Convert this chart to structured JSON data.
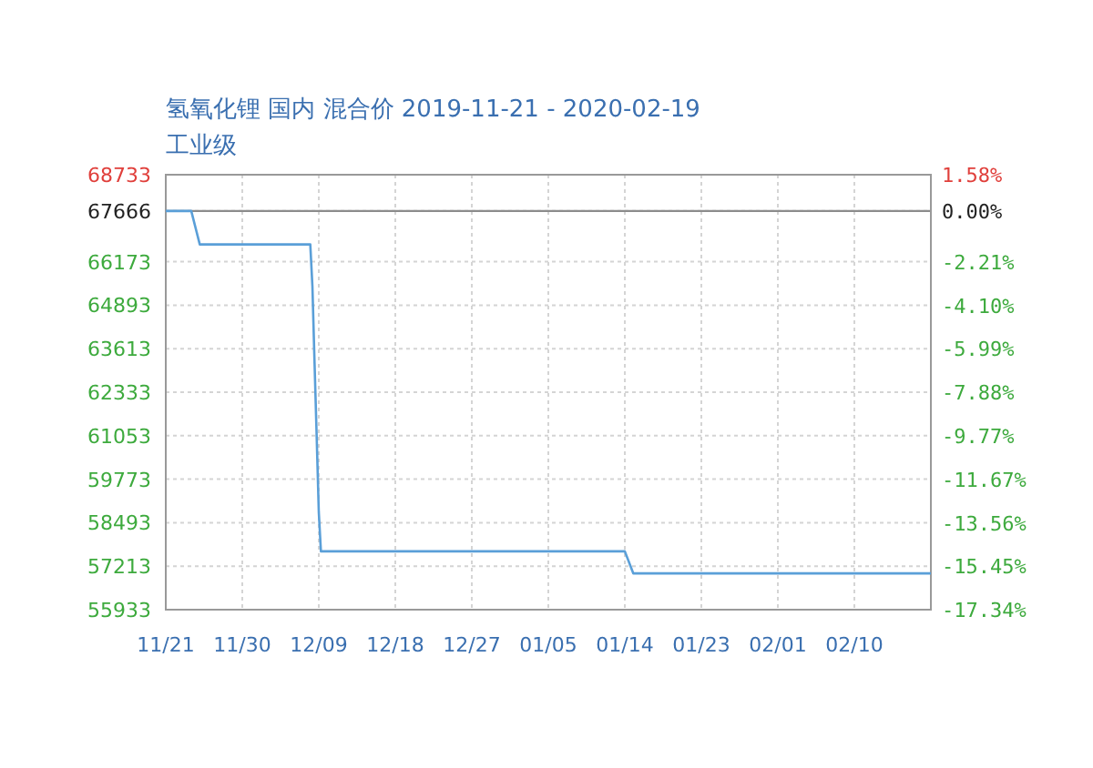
{
  "chart_data": {
    "type": "line",
    "title": "氢氧化锂 国内 混合价 2019-11-21 - 2020-02-19",
    "subtitle": "工业级",
    "series": [
      {
        "color": "#5a9fd8",
        "x": [
          "2019-11-21",
          "2019-11-24",
          "2019-11-25",
          "2019-12-08",
          "2019-12-08T06:00",
          "2019-12-08T12:00",
          "2019-12-08T18:00",
          "2019-12-09",
          "2019-12-09T06:00",
          "2020-01-14",
          "2020-01-15",
          "2020-02-19"
        ],
        "values": [
          67666,
          67666,
          66680,
          66680,
          65450,
          63200,
          61050,
          58800,
          57650,
          57650,
          57000,
          57000
        ]
      }
    ],
    "xlim": [
      "2019-11-21",
      "2020-02-19"
    ],
    "xticks": [
      {
        "value": "2019-11-21",
        "label": "11/21"
      },
      {
        "value": "2019-11-30",
        "label": "11/30"
      },
      {
        "value": "2019-12-09",
        "label": "12/09"
      },
      {
        "value": "2019-12-18",
        "label": "12/18"
      },
      {
        "value": "2019-12-27",
        "label": "12/27"
      },
      {
        "value": "2020-01-05",
        "label": "01/05"
      },
      {
        "value": "2020-01-14",
        "label": "01/14"
      },
      {
        "value": "2020-01-23",
        "label": "01/23"
      },
      {
        "value": "2020-02-01",
        "label": "02/01"
      },
      {
        "value": "2020-02-10",
        "label": "02/10"
      }
    ],
    "ylim": [
      55933,
      68733
    ],
    "yticks": [
      68733,
      67666,
      66173,
      64893,
      63613,
      62333,
      61053,
      59773,
      58493,
      57213,
      55933
    ],
    "y2lim": [
      -17.34,
      1.58
    ],
    "y2ticks": [
      {
        "value": 1.58,
        "label": "1.58%"
      },
      {
        "value": 0,
        "label": "0.00%"
      },
      {
        "value": -2.21,
        "label": "-2.21%"
      },
      {
        "value": -4.1,
        "label": "-4.10%"
      },
      {
        "value": -5.99,
        "label": "-5.99%"
      },
      {
        "value": -7.88,
        "label": "-7.88%"
      },
      {
        "value": -9.77,
        "label": "-9.77%"
      },
      {
        "value": -11.67,
        "label": "-11.67%"
      },
      {
        "value": -13.56,
        "label": "-13.56%"
      },
      {
        "value": -15.45,
        "label": "-15.45%"
      },
      {
        "value": -17.34,
        "label": "-17.34%"
      }
    ],
    "ref_lines": [
      {
        "axis": "y",
        "value": 67666,
        "color": "#8c8c8c"
      }
    ],
    "grid": true,
    "marker": "none",
    "line_style": "solid"
  }
}
